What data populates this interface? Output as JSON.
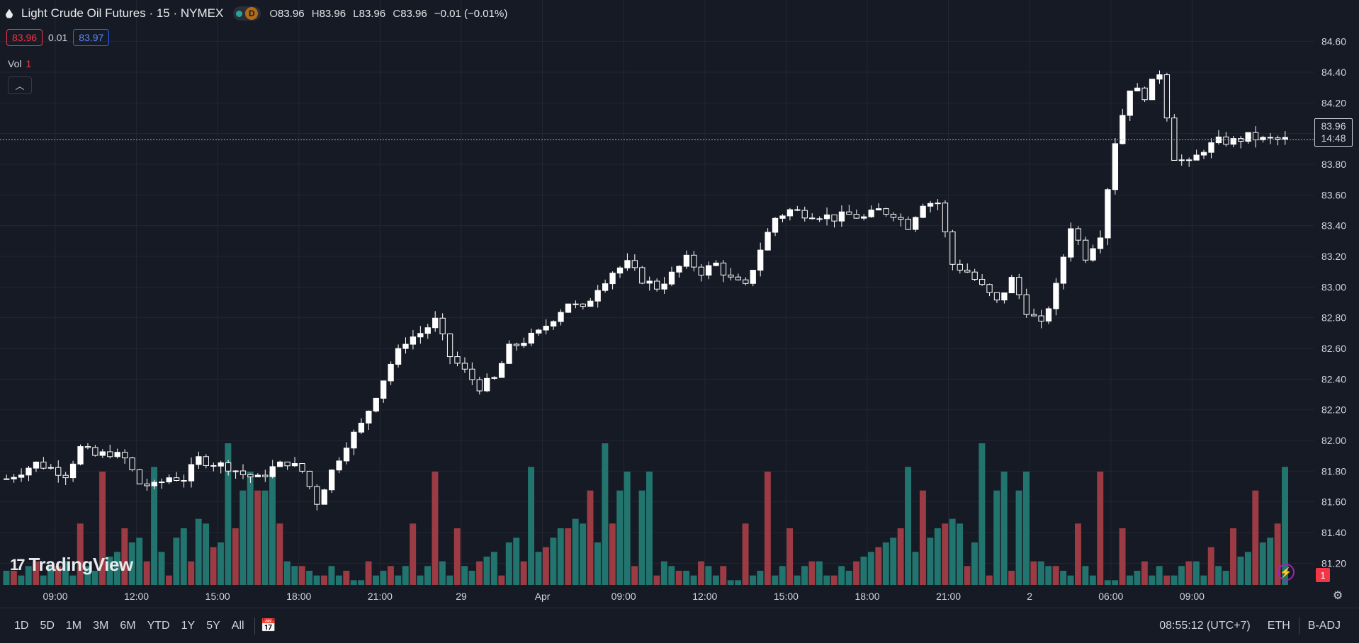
{
  "legend": {
    "symbol": "Light Crude Oil Futures · 15 · NYMEX",
    "open_label": "O",
    "open": "83.96",
    "high_label": "H",
    "high": "83.96",
    "low_label": "L",
    "low": "83.96",
    "close_label": "C",
    "close": "83.96",
    "change": "−0.01 (−0.01%)",
    "d_badge": "D"
  },
  "quote": {
    "bid": "83.96",
    "spread": "0.01",
    "ask": "83.97"
  },
  "volume_legend": {
    "label": "Vol",
    "value": "1"
  },
  "collapse_icon": "chevron-up-icon",
  "logo": {
    "text": "TradingView",
    "mark": "17"
  },
  "last_price": {
    "price": "83.96",
    "countdown": "14:48"
  },
  "alert_badge": "1",
  "bottom_bar": {
    "ranges": [
      "1D",
      "5D",
      "1M",
      "3M",
      "6M",
      "YTD",
      "1Y",
      "5Y",
      "All"
    ],
    "time": "08:55:12 (UTC+7)",
    "session": "ETH",
    "adjust": "B-ADJ"
  },
  "colors": {
    "background": "#161a25",
    "up_volume": "#22756e",
    "down_volume": "#9c3b43",
    "candle": "#ffffff",
    "grid": "#232733"
  },
  "chart_data": {
    "type": "candlestick",
    "ylim": [
      81.1,
      84.7
    ],
    "yticks": [
      "84.60",
      "84.40",
      "84.20",
      "84.00",
      "83.80",
      "83.60",
      "83.40",
      "83.20",
      "83.00",
      "82.80",
      "82.60",
      "82.40",
      "82.20",
      "82.00",
      "81.80",
      "81.60",
      "81.40",
      "81.20"
    ],
    "xticks": [
      "09:00",
      "12:00",
      "15:00",
      "18:00",
      "21:00",
      "29",
      "Apr",
      "09:00",
      "12:00",
      "15:00",
      "18:00",
      "21:00",
      "2",
      "06:00",
      "09:00"
    ],
    "close_path": [
      81.75,
      81.8,
      81.85,
      81.82,
      81.78,
      81.95,
      81.9,
      81.92,
      81.88,
      81.72,
      81.7,
      81.76,
      81.75,
      81.88,
      81.85,
      81.83,
      81.78,
      81.75,
      81.82,
      81.86,
      81.8,
      81.6,
      81.8,
      81.98,
      82.1,
      82.3,
      82.5,
      82.65,
      82.7,
      82.78,
      82.55,
      82.45,
      82.35,
      82.4,
      82.6,
      82.65,
      82.7,
      82.8,
      82.9,
      82.85,
      83.0,
      83.1,
      83.15,
      83.05,
      83.0,
      83.08,
      83.18,
      83.1,
      83.15,
      83.05,
      83.0,
      83.25,
      83.45,
      83.5,
      83.48,
      83.47,
      83.45,
      83.47,
      83.45,
      83.5,
      83.48,
      83.4,
      83.55,
      83.55,
      83.15,
      83.1,
      83.0,
      82.9,
      83.05,
      82.85,
      82.75,
      83.0,
      83.4,
      83.2,
      83.35,
      83.95,
      84.3,
      84.25,
      84.4,
      83.85,
      83.8,
      83.9,
      83.95,
      83.95,
      83.98,
      83.96,
      83.96
    ],
    "volume_up": [
      3,
      2,
      2,
      4,
      3,
      2,
      4,
      3,
      5,
      2,
      3,
      4,
      3,
      4,
      6,
      7,
      8,
      9,
      10,
      12,
      25,
      7,
      9,
      10,
      12,
      13,
      14,
      13,
      10,
      9,
      30,
      28,
      20,
      24,
      22,
      20,
      24,
      10,
      5,
      4,
      6,
      3,
      2,
      3,
      4,
      2,
      3,
      1,
      1,
      2,
      2
    ],
    "volume_down": [
      2,
      3,
      4,
      3,
      5,
      6,
      5,
      4,
      7,
      8,
      13,
      18,
      20,
      24,
      22,
      18,
      12,
      8,
      6,
      5,
      4,
      3,
      2,
      3,
      4,
      5,
      6,
      7,
      8,
      10,
      9,
      12,
      16,
      14,
      20,
      22,
      18,
      13,
      9,
      6,
      4,
      3,
      2,
      2,
      1
    ]
  }
}
